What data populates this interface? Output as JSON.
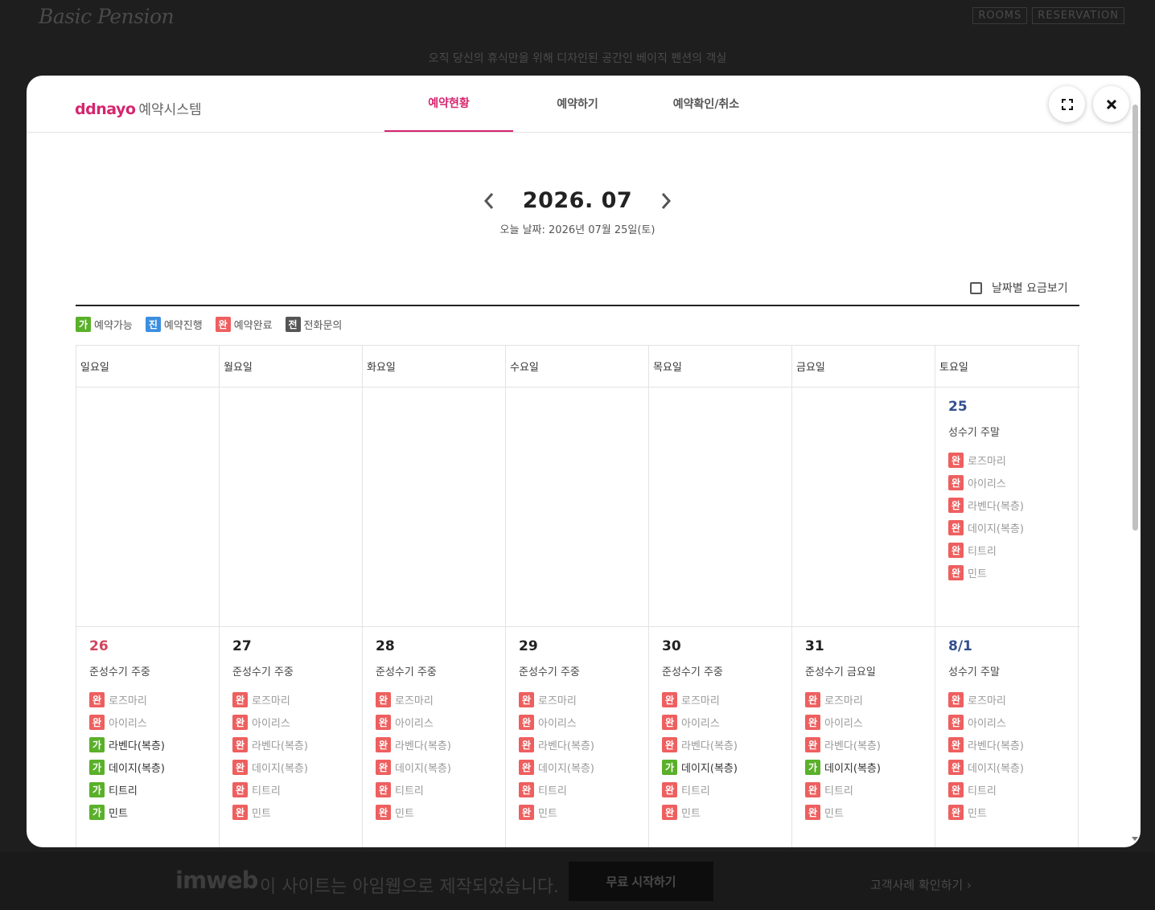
{
  "background": {
    "logo": "Basic Pension",
    "nav": [
      "ROOMS",
      "RESERVATION"
    ],
    "tagline": "오직 당신의 휴식만을 위해 디자인된 공간인 베이직 펜션의 객실",
    "footer": {
      "logo": "imweb",
      "text": "이 사이트는 아임웹으로 제작되었습니다.",
      "button": "무료 시작하기",
      "link": "고객사례 확인하기 ›"
    }
  },
  "modal": {
    "brand": {
      "name": "ddnayo",
      "sub": "예약시스템"
    },
    "tabs": [
      "예약현황",
      "예약하기",
      "예약확인/취소"
    ],
    "active_tab": 0,
    "month": "2026. 07",
    "today": "오늘 날짜: 2026년 07월 25일(토)",
    "price_toggle_label": "날짜별 요금보기",
    "legend": [
      {
        "badge": "가",
        "label": "예약가능",
        "type": "avail"
      },
      {
        "badge": "진",
        "label": "예약진행",
        "type": "prog"
      },
      {
        "badge": "완",
        "label": "예약완료",
        "type": "done"
      },
      {
        "badge": "전",
        "label": "전화문의",
        "type": "tel"
      }
    ],
    "weekdays": [
      "일요일",
      "월요일",
      "화요일",
      "수요일",
      "목요일",
      "금요일",
      "토요일"
    ],
    "weeks": [
      [
        null,
        null,
        null,
        null,
        null,
        null,
        {
          "day": "25",
          "season": "성수기 주말",
          "rooms": [
            {
              "badge": "완",
              "name": "로즈마리",
              "status": "done"
            },
            {
              "badge": "완",
              "name": "아이리스",
              "status": "done"
            },
            {
              "badge": "완",
              "name": "라벤다(복층)",
              "status": "done"
            },
            {
              "badge": "완",
              "name": "데이지(복층)",
              "status": "done"
            },
            {
              "badge": "완",
              "name": "티트리",
              "status": "done"
            },
            {
              "badge": "완",
              "name": "민트",
              "status": "done"
            }
          ]
        }
      ],
      [
        {
          "day": "26",
          "season": "준성수기 주중",
          "rooms": [
            {
              "badge": "완",
              "name": "로즈마리",
              "status": "done"
            },
            {
              "badge": "완",
              "name": "아이리스",
              "status": "done"
            },
            {
              "badge": "가",
              "name": "라벤다(복층)",
              "status": "avail"
            },
            {
              "badge": "가",
              "name": "데이지(복층)",
              "status": "avail"
            },
            {
              "badge": "가",
              "name": "티트리",
              "status": "avail"
            },
            {
              "badge": "가",
              "name": "민트",
              "status": "avail"
            }
          ]
        },
        {
          "day": "27",
          "season": "준성수기 주중",
          "rooms": [
            {
              "badge": "완",
              "name": "로즈마리",
              "status": "done"
            },
            {
              "badge": "완",
              "name": "아이리스",
              "status": "done"
            },
            {
              "badge": "완",
              "name": "라벤다(복층)",
              "status": "done"
            },
            {
              "badge": "완",
              "name": "데이지(복층)",
              "status": "done"
            },
            {
              "badge": "완",
              "name": "티트리",
              "status": "done"
            },
            {
              "badge": "완",
              "name": "민트",
              "status": "done"
            }
          ]
        },
        {
          "day": "28",
          "season": "준성수기 주중",
          "rooms": [
            {
              "badge": "완",
              "name": "로즈마리",
              "status": "done"
            },
            {
              "badge": "완",
              "name": "아이리스",
              "status": "done"
            },
            {
              "badge": "완",
              "name": "라벤다(복층)",
              "status": "done"
            },
            {
              "badge": "완",
              "name": "데이지(복층)",
              "status": "done"
            },
            {
              "badge": "완",
              "name": "티트리",
              "status": "done"
            },
            {
              "badge": "완",
              "name": "민트",
              "status": "done"
            }
          ]
        },
        {
          "day": "29",
          "season": "준성수기 주중",
          "rooms": [
            {
              "badge": "완",
              "name": "로즈마리",
              "status": "done"
            },
            {
              "badge": "완",
              "name": "아이리스",
              "status": "done"
            },
            {
              "badge": "완",
              "name": "라벤다(복층)",
              "status": "done"
            },
            {
              "badge": "완",
              "name": "데이지(복층)",
              "status": "done"
            },
            {
              "badge": "완",
              "name": "티트리",
              "status": "done"
            },
            {
              "badge": "완",
              "name": "민트",
              "status": "done"
            }
          ]
        },
        {
          "day": "30",
          "season": "준성수기 주중",
          "rooms": [
            {
              "badge": "완",
              "name": "로즈마리",
              "status": "done"
            },
            {
              "badge": "완",
              "name": "아이리스",
              "status": "done"
            },
            {
              "badge": "완",
              "name": "라벤다(복층)",
              "status": "done"
            },
            {
              "badge": "가",
              "name": "데이지(복층)",
              "status": "avail"
            },
            {
              "badge": "완",
              "name": "티트리",
              "status": "done"
            },
            {
              "badge": "완",
              "name": "민트",
              "status": "done"
            }
          ]
        },
        {
          "day": "31",
          "season": "준성수기 금요일",
          "rooms": [
            {
              "badge": "완",
              "name": "로즈마리",
              "status": "done"
            },
            {
              "badge": "완",
              "name": "아이리스",
              "status": "done"
            },
            {
              "badge": "완",
              "name": "라벤다(복층)",
              "status": "done"
            },
            {
              "badge": "가",
              "name": "데이지(복층)",
              "status": "avail"
            },
            {
              "badge": "완",
              "name": "티트리",
              "status": "done"
            },
            {
              "badge": "완",
              "name": "민트",
              "status": "done"
            }
          ]
        },
        {
          "day": "8/1",
          "season": "성수기 주말",
          "rooms": [
            {
              "badge": "완",
              "name": "로즈마리",
              "status": "done"
            },
            {
              "badge": "완",
              "name": "아이리스",
              "status": "done"
            },
            {
              "badge": "완",
              "name": "라벤다(복층)",
              "status": "done"
            },
            {
              "badge": "완",
              "name": "데이지(복층)",
              "status": "done"
            },
            {
              "badge": "완",
              "name": "티트리",
              "status": "done"
            },
            {
              "badge": "완",
              "name": "민트",
              "status": "done"
            }
          ]
        }
      ]
    ]
  },
  "icons": {
    "expand": "fullscreen-icon",
    "close": "close-icon",
    "prev": "chevron-left-icon",
    "next": "chevron-right-icon"
  },
  "colors": {
    "brand": "#d6246e",
    "available": "#5ab02a",
    "in_progress": "#3b8fe0",
    "completed": "#ee5f5f",
    "phone": "#555555",
    "sunday": "#d0455e",
    "saturday": "#33508f"
  }
}
